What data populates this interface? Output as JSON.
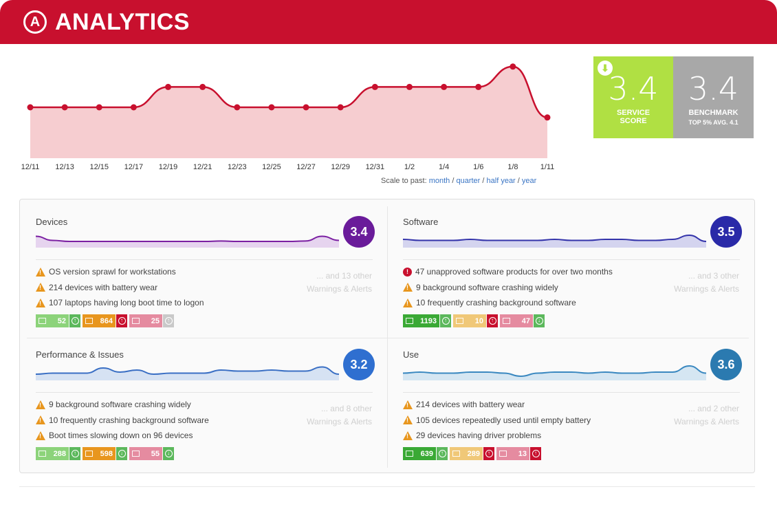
{
  "header": {
    "title": "ANALYTICS",
    "logo_letter": "A"
  },
  "main_chart": {
    "x_labels": [
      "12/11",
      "12/13",
      "12/15",
      "12/17",
      "12/19",
      "12/21",
      "12/23",
      "12/25",
      "12/27",
      "12/29",
      "12/31",
      "1/2",
      "1/4",
      "1/6",
      "1/8",
      "1/11"
    ],
    "values": [
      3.5,
      3.5,
      3.5,
      3.5,
      3.7,
      3.7,
      3.5,
      3.5,
      3.5,
      3.5,
      3.7,
      3.7,
      3.7,
      3.7,
      3.9,
      3.4
    ],
    "line_color": "#c8102e",
    "fill_color": "#f6cdd0"
  },
  "scale": {
    "label": "Scale to past:",
    "options": [
      "month",
      "quarter",
      "half year",
      "year"
    ],
    "separator": "/"
  },
  "service_score": {
    "value": "3.4",
    "label_line1": "SERVICE",
    "label_line2": "SCORE",
    "color": "#b0e043"
  },
  "benchmark": {
    "value": "3.4",
    "label": "BENCHMARK",
    "sub": "TOP 5% AVG. 4.1",
    "color": "#a8a8a8"
  },
  "quadrants": [
    {
      "title": "Devices",
      "score": "3.4",
      "color": "#6a1b9a",
      "spark_color": "#7b1fa2",
      "spark_fill": "#e6d4ef",
      "spark": [
        0.55,
        0.35,
        0.3,
        0.3,
        0.3,
        0.3,
        0.3,
        0.3,
        0.3,
        0.3,
        0.3,
        0.32,
        0.3,
        0.3,
        0.3,
        0.3,
        0.32,
        0.55,
        0.35
      ],
      "alerts": [
        {
          "level": "warn",
          "text": "OS version sprawl for workstations"
        },
        {
          "level": "warn",
          "text": "214 devices with battery wear"
        },
        {
          "level": "warn",
          "text": "107 laptops having long boot time to logon"
        }
      ],
      "more_line1": "... and 13 other",
      "more_line2": "Warnings & Alerts",
      "badges": [
        {
          "value": "52",
          "bg": "#8cd37a",
          "arrow": "up",
          "arrow_bg": "#5cb85c"
        },
        {
          "value": "864",
          "bg": "#e8961e",
          "arrow": "up",
          "arrow_bg": "#c8102e"
        },
        {
          "value": "25",
          "bg": "#e58ba0",
          "arrow": "up",
          "arrow_bg": "#c9c9c9"
        }
      ]
    },
    {
      "title": "Software",
      "score": "3.5",
      "color": "#2a2aa8",
      "spark_color": "#3333aa",
      "spark_fill": "#d4d4ef",
      "spark": [
        0.4,
        0.35,
        0.35,
        0.35,
        0.4,
        0.35,
        0.35,
        0.35,
        0.35,
        0.4,
        0.35,
        0.35,
        0.4,
        0.4,
        0.35,
        0.35,
        0.4,
        0.6,
        0.3
      ],
      "alerts": [
        {
          "level": "error",
          "text": "47 unapproved software products for over two months"
        },
        {
          "level": "warn",
          "text": "9 background software crashing widely"
        },
        {
          "level": "warn",
          "text": "10 frequently crashing background software"
        }
      ],
      "more_line1": "... and 3 other",
      "more_line2": "Warnings & Alerts",
      "badges": [
        {
          "value": "1193",
          "bg": "#3aa935",
          "arrow": "up",
          "arrow_bg": "#5cb85c"
        },
        {
          "value": "10",
          "bg": "#f0c878",
          "arrow": "up",
          "arrow_bg": "#c8102e"
        },
        {
          "value": "47",
          "bg": "#e58ba0",
          "arrow": "down",
          "arrow_bg": "#5cb85c"
        }
      ]
    },
    {
      "title": "Performance & Issues",
      "score": "3.2",
      "color": "#2f6fd0",
      "spark_color": "#3a6fc4",
      "spark_fill": "#d6e2f3",
      "spark": [
        0.3,
        0.35,
        0.35,
        0.35,
        0.6,
        0.4,
        0.5,
        0.3,
        0.35,
        0.35,
        0.35,
        0.5,
        0.45,
        0.45,
        0.5,
        0.45,
        0.45,
        0.65,
        0.3
      ],
      "alerts": [
        {
          "level": "warn",
          "text": "9 background software crashing widely"
        },
        {
          "level": "warn",
          "text": "10 frequently crashing background software"
        },
        {
          "level": "warn",
          "text": "Boot times slowing down on 96 devices"
        }
      ],
      "more_line1": "... and 8 other",
      "more_line2": "Warnings & Alerts",
      "badges": [
        {
          "value": "288",
          "bg": "#8cd37a",
          "arrow": "up",
          "arrow_bg": "#5cb85c"
        },
        {
          "value": "598",
          "bg": "#e8961e",
          "arrow": "down",
          "arrow_bg": "#5cb85c"
        },
        {
          "value": "55",
          "bg": "#e58ba0",
          "arrow": "down",
          "arrow_bg": "#5cb85c"
        }
      ]
    },
    {
      "title": "Use",
      "score": "3.6",
      "color": "#2b7ab0",
      "spark_color": "#3a88c0",
      "spark_fill": "#d5e6f2",
      "spark": [
        0.35,
        0.4,
        0.35,
        0.35,
        0.4,
        0.4,
        0.35,
        0.2,
        0.35,
        0.4,
        0.4,
        0.35,
        0.4,
        0.35,
        0.35,
        0.4,
        0.4,
        0.7,
        0.35
      ],
      "alerts": [
        {
          "level": "warn",
          "text": "214 devices with battery wear"
        },
        {
          "level": "warn",
          "text": "105 devices repeatedly used until empty battery"
        },
        {
          "level": "warn",
          "text": "29 devices having driver problems"
        }
      ],
      "more_line1": "... and 2 other",
      "more_line2": "Warnings & Alerts",
      "badges": [
        {
          "value": "639",
          "bg": "#3aa935",
          "arrow": "up",
          "arrow_bg": "#5cb85c"
        },
        {
          "value": "289",
          "bg": "#f0c878",
          "arrow": "up",
          "arrow_bg": "#c8102e"
        },
        {
          "value": "13",
          "bg": "#e58ba0",
          "arrow": "up",
          "arrow_bg": "#c8102e"
        }
      ]
    }
  ]
}
